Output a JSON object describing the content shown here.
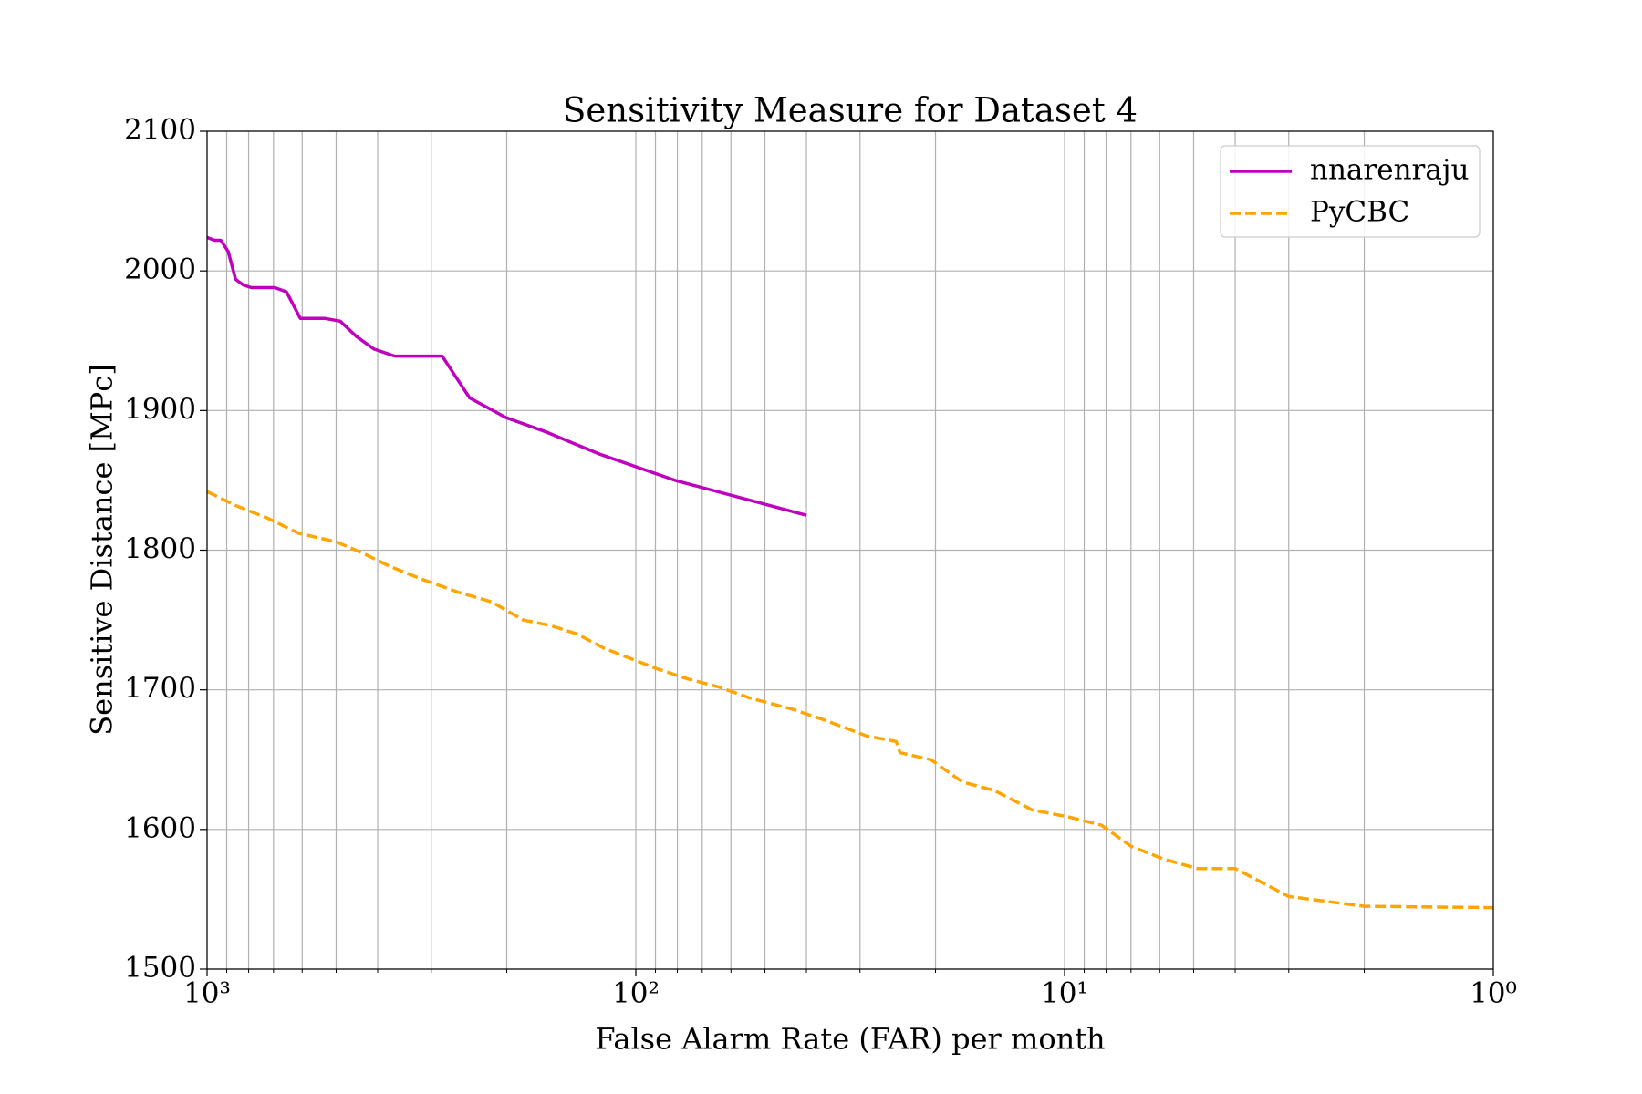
{
  "chart_data": {
    "type": "line",
    "title": "Sensitivity Measure for Dataset 4",
    "x_label": "False Alarm Rate (FAR) per month",
    "y_label": "Sensitive Distance [MPc]",
    "x_scale": "log",
    "xlim": [
      1000,
      1
    ],
    "ylim": [
      1500,
      2100
    ],
    "xticks": [
      {
        "value": 1000,
        "label": "10³"
      },
      {
        "value": 100,
        "label": "10²"
      },
      {
        "value": 10,
        "label": "10¹"
      },
      {
        "value": 1,
        "label": "10⁰"
      }
    ],
    "xminor_ticks": [
      900,
      800,
      700,
      600,
      500,
      400,
      300,
      200,
      90,
      80,
      70,
      60,
      50,
      40,
      30,
      20,
      9,
      8,
      7,
      6,
      5,
      4,
      3,
      2
    ],
    "yticks": [
      1500,
      1600,
      1700,
      1800,
      1900,
      2000,
      2100
    ],
    "grid": true,
    "legend": "upper right",
    "series": [
      {
        "name": "nnarenraju",
        "color": "#bf00bf",
        "style": "solid",
        "x": [
          1000,
          961,
          929,
          893,
          858,
          824,
          788,
          695,
          653,
          606,
          532,
          489,
          448,
          408,
          365,
          283,
          244,
          201,
          163,
          122,
          81,
          40
        ],
        "values": [
          2024,
          2022,
          2022,
          2014,
          1994,
          1990,
          1988,
          1988,
          1985,
          1966,
          1966,
          1964,
          1953,
          1944,
          1939,
          1939,
          1909,
          1895,
          1885,
          1869,
          1850,
          1825
        ]
      },
      {
        "name": "PyCBC",
        "color": "#ffa500",
        "style": "dashed",
        "x": [
          1000,
          858,
          723,
          610,
          500,
          434,
          372,
          314,
          260,
          217,
          183,
          158,
          137,
          119,
          102,
          89,
          76,
          64,
          54,
          43,
          36,
          29,
          24.7,
          24.2,
          20.5,
          17.3,
          14.6,
          11.9,
          9.8,
          8.2,
          7.0,
          5.9,
          4.9,
          4.0,
          3.0,
          2.0,
          1
        ],
        "values": [
          1842,
          1832,
          1823,
          1812,
          1806,
          1798,
          1788,
          1779,
          1770,
          1763,
          1750,
          1746,
          1740,
          1730,
          1722,
          1715,
          1708,
          1702,
          1694,
          1686,
          1678,
          1667,
          1663,
          1655,
          1650,
          1634,
          1628,
          1614,
          1609,
          1603,
          1588,
          1579,
          1572,
          1572,
          1552,
          1545,
          1544
        ]
      }
    ]
  }
}
